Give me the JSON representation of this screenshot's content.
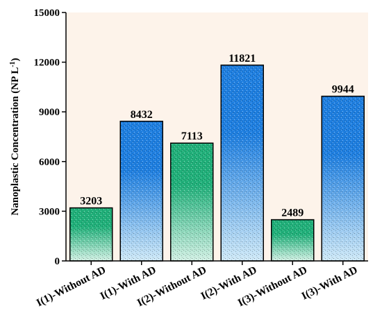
{
  "chart_data": {
    "type": "bar",
    "ylabel": "Nanoplastic Concentration (NP L",
    "ylabel_superscript": "-1",
    "ylabel_close": ")",
    "categories": [
      "I(1)-Without AD",
      "I(1)-With AD",
      "I(2)-Without AD",
      "I(2)-With AD",
      "I(3)-Without AD",
      "I(3)-With AD"
    ],
    "values": [
      3203,
      8432,
      7113,
      11821,
      2489,
      9944
    ],
    "data_labels": [
      "3203",
      "8432",
      "7113",
      "11821",
      "2489",
      "9944"
    ],
    "bar_groups": [
      "green",
      "blue",
      "green",
      "blue",
      "green",
      "blue"
    ],
    "ylim": [
      0,
      15000
    ],
    "yticks": [
      0,
      3000,
      6000,
      9000,
      12000,
      15000
    ],
    "ytick_labels": [
      "0",
      "3000",
      "6000",
      "9000",
      "12000",
      "15000"
    ],
    "grid": false,
    "colors": {
      "plot_background": "#fdf3ea",
      "blue_top": "#1f7fe0",
      "blue_bottom": "#cfe9f7",
      "green_top": "#21b07a",
      "green_bottom": "#d2f0e4",
      "bar_edge": "#000000"
    }
  }
}
